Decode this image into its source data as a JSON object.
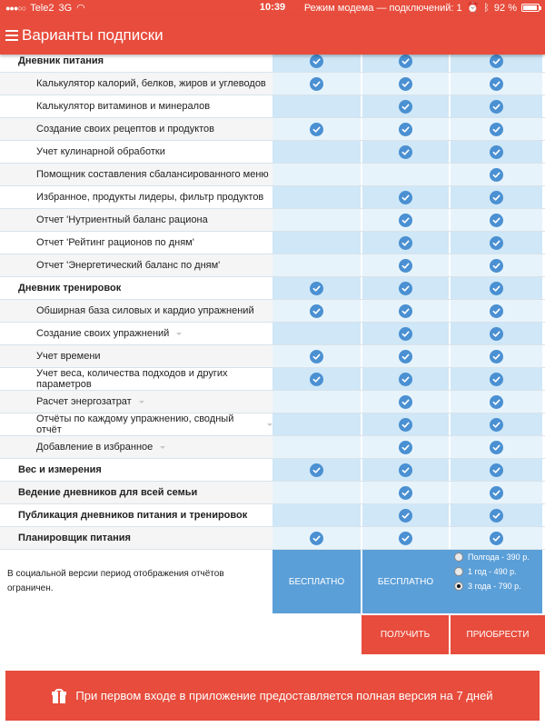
{
  "status_bar": {
    "carrier": "Tele2",
    "network": "3G",
    "time": "10:39",
    "tethering": "Режим модема — подключений: 1",
    "battery": "92 %",
    "battery_level": 0.92
  },
  "header": {
    "title": "Варианты подписки",
    "menu_icon": "hamburger-icon"
  },
  "check_icon": "check-circle-icon",
  "rows": [
    {
      "label": "Дневник питания",
      "type": "section",
      "checks": [
        true,
        true,
        true
      ],
      "caret": false
    },
    {
      "label": "Калькулятор калорий, белков, жиров и углеводов",
      "type": "item",
      "checks": [
        true,
        true,
        true
      ],
      "caret": false
    },
    {
      "label": "Калькулятор витаминов и минералов",
      "type": "item",
      "checks": [
        false,
        true,
        true
      ],
      "caret": false
    },
    {
      "label": "Создание своих рецептов и продуктов",
      "type": "item",
      "checks": [
        true,
        true,
        true
      ],
      "caret": false
    },
    {
      "label": "Учет кулинарной обработки",
      "type": "item",
      "checks": [
        false,
        true,
        true
      ],
      "caret": false
    },
    {
      "label": "Помощник составления сбалансированного меню",
      "type": "item",
      "checks": [
        false,
        false,
        true
      ],
      "caret": false
    },
    {
      "label": "Избранное, продукты лидеры, фильтр продуктов",
      "type": "item",
      "checks": [
        false,
        true,
        true
      ],
      "caret": false
    },
    {
      "label": "Отчет 'Нутриентный баланс рациона",
      "type": "item",
      "checks": [
        false,
        true,
        true
      ],
      "caret": false
    },
    {
      "label": "Отчет 'Рейтинг рационов по дням'",
      "type": "item",
      "checks": [
        false,
        true,
        true
      ],
      "caret": false
    },
    {
      "label": "Отчет 'Энергетический баланс по дням'",
      "type": "item",
      "checks": [
        false,
        true,
        true
      ],
      "caret": false
    },
    {
      "label": "Дневник тренировок",
      "type": "section",
      "checks": [
        true,
        true,
        true
      ],
      "caret": false
    },
    {
      "label": "Обширная база силовых и кардио упражнений",
      "type": "item",
      "checks": [
        true,
        true,
        true
      ],
      "caret": false
    },
    {
      "label": "Создание своих упражнений",
      "type": "item",
      "checks": [
        false,
        true,
        true
      ],
      "caret": true
    },
    {
      "label": "Учет времени",
      "type": "item",
      "checks": [
        true,
        true,
        true
      ],
      "caret": false
    },
    {
      "label": "Учет веса, количества подходов и других параметров",
      "type": "item",
      "checks": [
        true,
        true,
        true
      ],
      "caret": false
    },
    {
      "label": "Расчет энергозатрат",
      "type": "item",
      "checks": [
        false,
        true,
        true
      ],
      "caret": true
    },
    {
      "label": "Отчёты по каждому упражнению, сводный отчёт",
      "type": "item",
      "checks": [
        false,
        true,
        true
      ],
      "caret": true
    },
    {
      "label": "Добавление в избранное",
      "type": "item",
      "checks": [
        false,
        true,
        true
      ],
      "caret": true
    },
    {
      "label": "Вес и измерения",
      "type": "section",
      "checks": [
        true,
        true,
        true
      ],
      "caret": false
    },
    {
      "label": "Ведение дневников для всей семьи",
      "type": "section",
      "checks": [
        false,
        true,
        true
      ],
      "caret": false
    },
    {
      "label": "Публикация дневников питания и тренировок",
      "type": "section",
      "checks": [
        false,
        true,
        true
      ],
      "caret": false
    },
    {
      "label": "Планировщик питания",
      "type": "section",
      "checks": [
        true,
        true,
        true
      ],
      "caret": false
    }
  ],
  "pricing": {
    "note": "В социальной версии период отображения отчётов ограничен.",
    "plans": [
      "БЕСПЛАТНО",
      "БЕСПЛАТНО"
    ],
    "options": [
      {
        "label": "Полгода - 390 р.",
        "selected": false
      },
      {
        "label": "1 год - 490 р.",
        "selected": false
      },
      {
        "label": "3 года - 790 р.",
        "selected": true
      }
    ]
  },
  "actions": {
    "get_label": "ПОЛУЧИТЬ",
    "buy_label": "ПРИОБРЕСТИ"
  },
  "banner": {
    "text": "При первом входе в приложение предоставляется полная версия на 7 дней",
    "icon": "gift-icon"
  }
}
